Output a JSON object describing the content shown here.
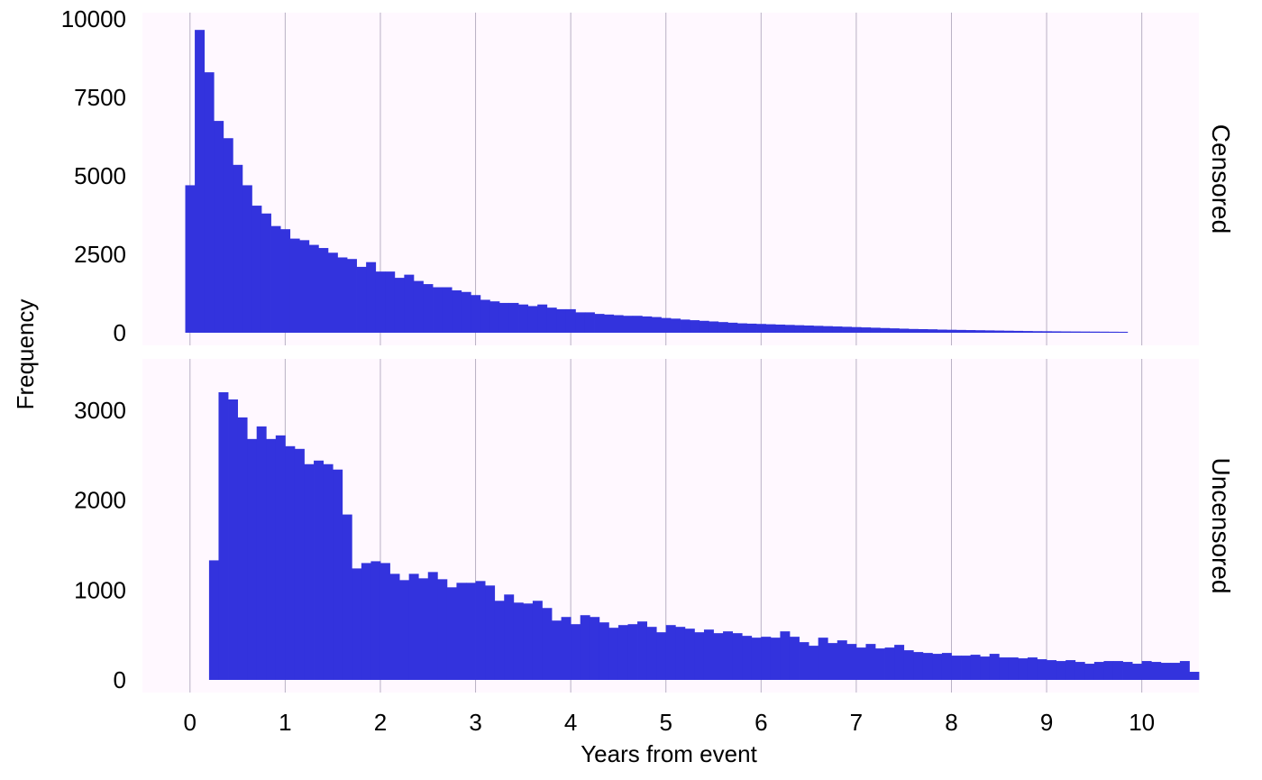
{
  "chart_data": {
    "type": "bar",
    "xlabel": "Years from event",
    "ylabel": "Frequency",
    "x_ticks": [
      0,
      1,
      2,
      3,
      4,
      5,
      6,
      7,
      8,
      9,
      10
    ],
    "xlim": [
      -0.5,
      10.6
    ],
    "bin_width": 0.1,
    "bar_color": "#3333dd",
    "panel_background": "#fff8ff",
    "grid": "vertical lines at x ticks",
    "panels": [
      {
        "label": "Censored",
        "ylim": [
          0,
          10000
        ],
        "y_ticks": [
          0,
          2500,
          5000,
          7500,
          10000
        ],
        "bin_start": -0.05,
        "values": [
          4700,
          9650,
          8300,
          6750,
          6200,
          5350,
          4700,
          4050,
          3800,
          3400,
          3300,
          3000,
          2950,
          2800,
          2700,
          2550,
          2400,
          2350,
          2100,
          2250,
          1950,
          1950,
          1750,
          1850,
          1650,
          1550,
          1450,
          1450,
          1350,
          1300,
          1200,
          1050,
          1000,
          950,
          950,
          900,
          850,
          900,
          800,
          750,
          750,
          650,
          650,
          600,
          580,
          560,
          540,
          540,
          520,
          500,
          470,
          450,
          420,
          400,
          380,
          360,
          340,
          320,
          300,
          290,
          280,
          270,
          260,
          250,
          240,
          230,
          220,
          210,
          200,
          190,
          180,
          170,
          160,
          150,
          140,
          130,
          120,
          115,
          110,
          100,
          95,
          90,
          85,
          80,
          75,
          70,
          65,
          60,
          55,
          50,
          48,
          45,
          42,
          40,
          38,
          36,
          34,
          32,
          30
        ]
      },
      {
        "label": "Uncensored",
        "ylim": [
          0,
          3200
        ],
        "y_ticks": [
          0,
          1000,
          2000,
          3000
        ],
        "bin_start": 0.2,
        "values": [
          1330,
          3200,
          3120,
          2920,
          2680,
          2820,
          2680,
          2720,
          2600,
          2570,
          2400,
          2440,
          2400,
          2340,
          1840,
          1240,
          1300,
          1320,
          1300,
          1180,
          1110,
          1180,
          1130,
          1200,
          1120,
          1030,
          1080,
          1080,
          1100,
          1050,
          880,
          950,
          860,
          850,
          880,
          800,
          660,
          700,
          620,
          720,
          700,
          640,
          580,
          610,
          620,
          650,
          590,
          530,
          610,
          590,
          570,
          530,
          560,
          520,
          540,
          520,
          490,
          470,
          480,
          470,
          540,
          480,
          420,
          380,
          470,
          410,
          440,
          400,
          360,
          400,
          350,
          360,
          390,
          330,
          310,
          300,
          290,
          300,
          270,
          270,
          280,
          260,
          290,
          250,
          250,
          240,
          250,
          230,
          220,
          210,
          220,
          200,
          180,
          200,
          210,
          210,
          200,
          180,
          210,
          200,
          190,
          190,
          210,
          90
        ]
      }
    ]
  }
}
